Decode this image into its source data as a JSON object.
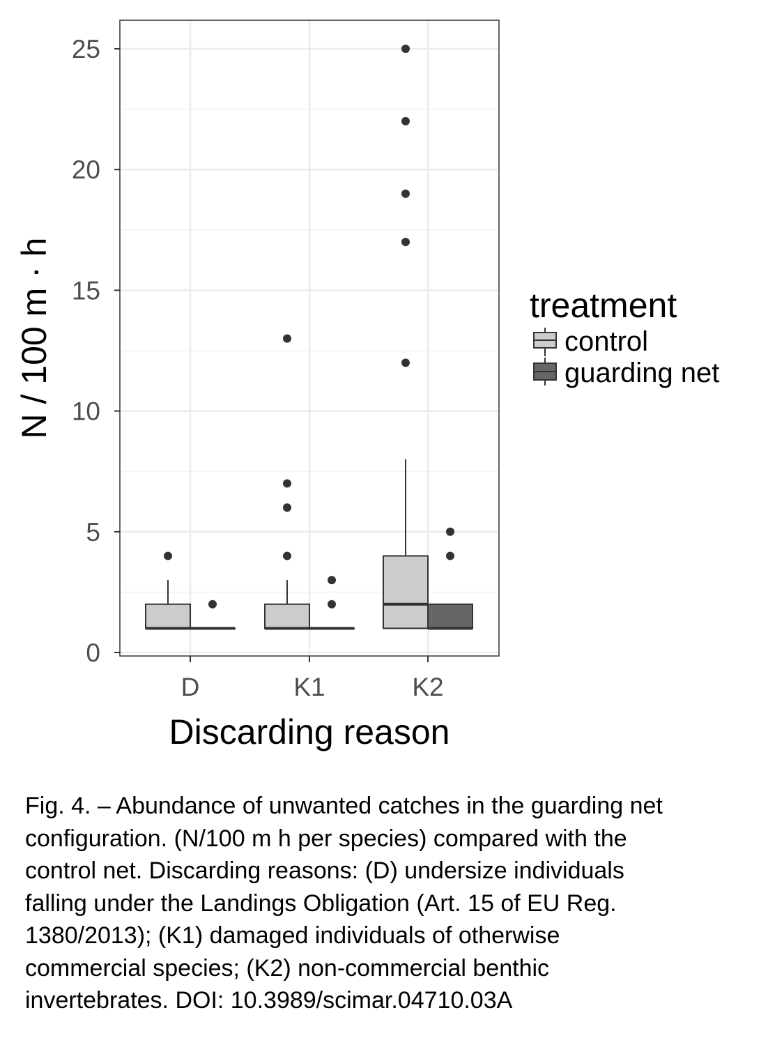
{
  "chart_data": {
    "type": "boxplot",
    "xlabel": "Discarding reason",
    "ylabel": "N / 100 m · h",
    "categories": [
      "D",
      "K1",
      "K2"
    ],
    "ylim": [
      0,
      26
    ],
    "yticks": [
      0,
      5,
      10,
      15,
      20,
      25
    ],
    "y_minor_gridlines": [
      2.5,
      7.5,
      12.5,
      17.5,
      22.5
    ],
    "grid": true,
    "legend": {
      "title": "treatment",
      "placement": "right",
      "entries": [
        {
          "name": "control",
          "color": "#cccccc"
        },
        {
          "name": "guarding net",
          "color": "#666666"
        }
      ]
    },
    "series": [
      {
        "name": "control",
        "color": "#cccccc",
        "boxes": [
          {
            "category": "D",
            "min": 1,
            "q1": 1,
            "median": 1,
            "q3": 2,
            "max": 3,
            "outliers": [
              4
            ]
          },
          {
            "category": "K1",
            "min": 1,
            "q1": 1,
            "median": 1,
            "q3": 2,
            "max": 3,
            "outliers": [
              4,
              6,
              7,
              13
            ]
          },
          {
            "category": "K2",
            "min": 1,
            "q1": 1,
            "median": 2,
            "q3": 4,
            "max": 8,
            "outliers": [
              12,
              17,
              19,
              22,
              25
            ]
          }
        ]
      },
      {
        "name": "guarding net",
        "color": "#666666",
        "boxes": [
          {
            "category": "D",
            "min": 1,
            "q1": 1,
            "median": 1,
            "q3": 1,
            "max": 1,
            "outliers": [
              2
            ]
          },
          {
            "category": "K1",
            "min": 1,
            "q1": 1,
            "median": 1,
            "q3": 1,
            "max": 1,
            "outliers": [
              2,
              3
            ]
          },
          {
            "category": "K2",
            "min": 1,
            "q1": 1,
            "median": 1,
            "q3": 2,
            "max": 2,
            "outliers": [
              4,
              5
            ]
          }
        ]
      }
    ]
  },
  "caption": {
    "lines": [
      "Fig. 4. – Abundance of unwanted catches in the guarding net",
      "configuration. (N/100 m h per species) compared with the",
      "control net. Discarding reasons: (D) undersize individuals",
      "falling under the Landings Obligation (Art. 15 of EU Reg.",
      "1380/2013); (K1) damaged individuals of otherwise",
      "commercial species; (K2) non-commercial benthic",
      "invertebrates. DOI: 10.3989/scimar.04710.03A"
    ]
  }
}
